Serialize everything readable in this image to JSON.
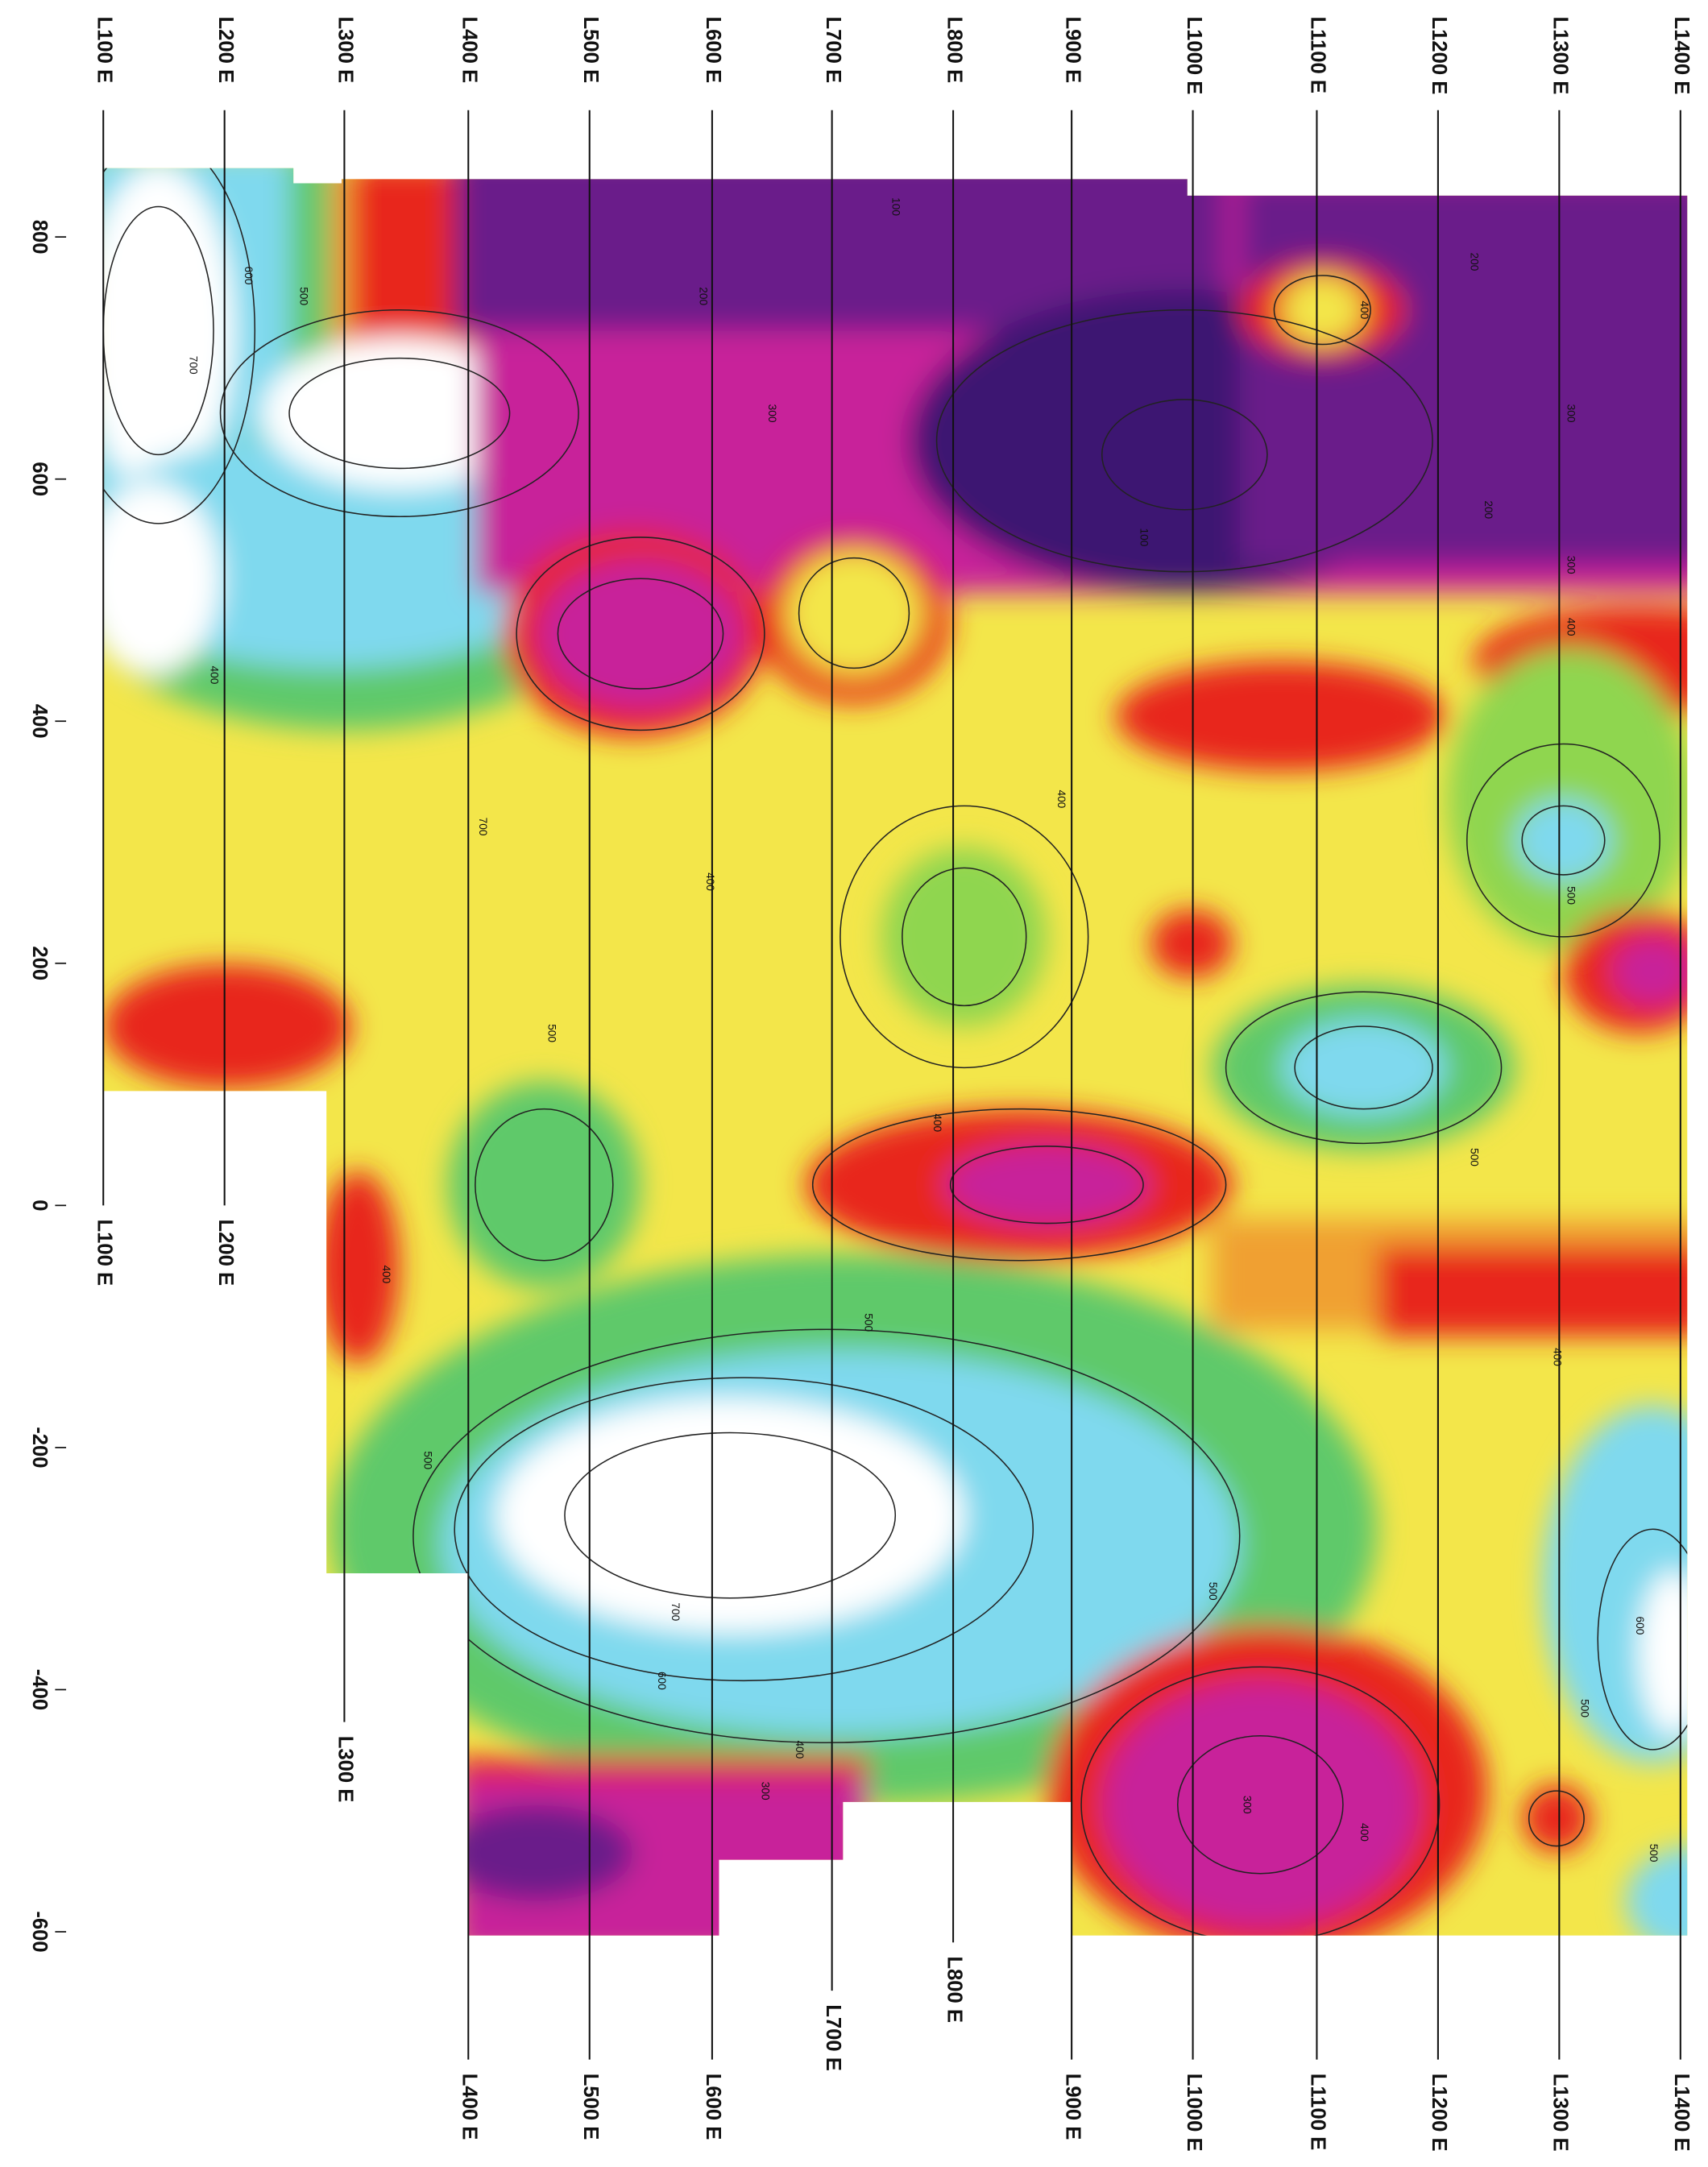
{
  "y_axis_ticks": [
    800,
    600,
    400,
    200,
    0,
    -200,
    -400,
    -600
  ],
  "survey_lines": [
    "L100 E",
    "L200 E",
    "L300 E",
    "L400 E",
    "L500 E",
    "L600 E",
    "L700 E",
    "L800 E",
    "L900 E",
    "L1000 E",
    "L1100 E",
    "L1200 E",
    "L1300 E",
    "L1400 E"
  ],
  "contour_labels": [
    600,
    500,
    700,
    400,
    700,
    500,
    400,
    500,
    700,
    600,
    400,
    300,
    500,
    400,
    400,
    400,
    300,
    200,
    100,
    100,
    400,
    300,
    200,
    300,
    400,
    500,
    500,
    400,
    500,
    600,
    500,
    500,
    400,
    300,
    200
  ]
}
